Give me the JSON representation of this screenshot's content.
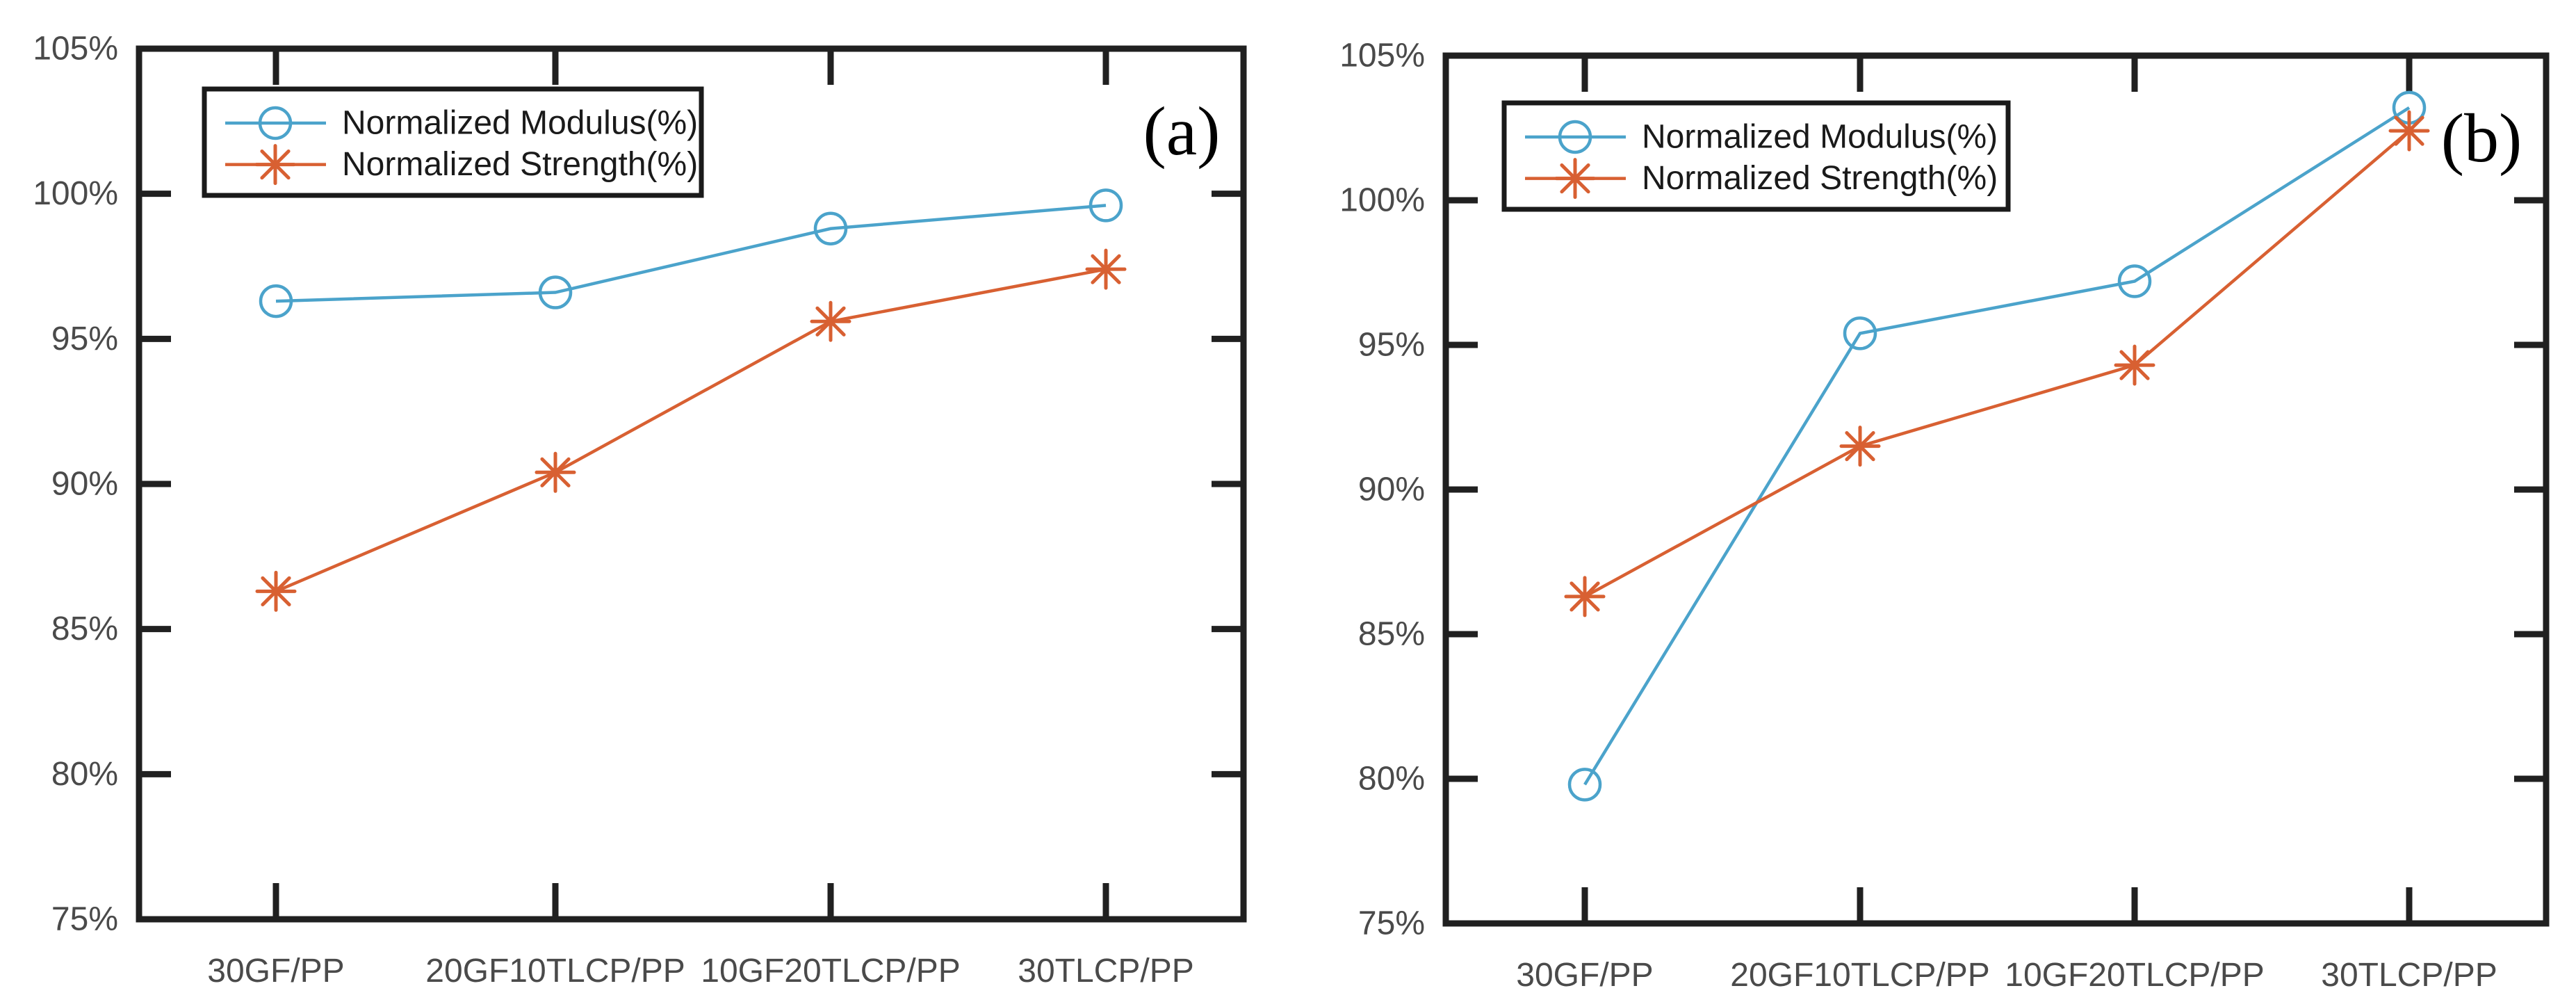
{
  "page": {
    "background_color": "#ffffff"
  },
  "colors": {
    "axis": "#202020",
    "tick_label": "#4a4a4a",
    "panel_label": "#000000",
    "legend_border": "#1a1a1a",
    "legend_background": "#ffffff"
  },
  "chart_data": [
    {
      "type": "line",
      "panel_label": "(a)",
      "title": "",
      "xlabel": "",
      "ylabel": "",
      "categories": [
        "30GF/PP",
        "20GF10TLCP/PP",
        "10GF20TLCP/PP",
        "30TLCP/PP"
      ],
      "series": [
        {
          "name": "Normalized Modulus(%)",
          "marker": "circle",
          "color": "#4BA3CB",
          "values": [
            96.3,
            96.6,
            98.8,
            99.6
          ]
        },
        {
          "name": "Normalized Strength(%)",
          "marker": "asterisk",
          "color": "#D86032",
          "values": [
            86.3,
            90.4,
            95.6,
            97.4
          ]
        }
      ],
      "ylim": [
        75,
        105
      ],
      "ytick_step": 5,
      "ytick_labels": [
        "75%",
        "80%",
        "85%",
        "90%",
        "95%",
        "100%",
        "105%"
      ],
      "legend_position": "top-left",
      "grid": false
    },
    {
      "type": "line",
      "panel_label": "(b)",
      "title": "",
      "xlabel": "",
      "ylabel": "",
      "categories": [
        "30GF/PP",
        "20GF10TLCP/PP",
        "10GF20TLCP/PP",
        "30TLCP/PP"
      ],
      "series": [
        {
          "name": "Normalized Modulus(%)",
          "marker": "circle",
          "color": "#4BA3CB",
          "values": [
            79.8,
            95.4,
            97.2,
            103.2
          ]
        },
        {
          "name": "Normalized Strength(%)",
          "marker": "asterisk",
          "color": "#D86032",
          "values": [
            86.3,
            91.5,
            94.3,
            102.4
          ]
        }
      ],
      "ylim": [
        75,
        105
      ],
      "ytick_step": 5,
      "ytick_labels": [
        "75%",
        "80%",
        "85%",
        "90%",
        "95%",
        "100%",
        "105%"
      ],
      "legend_position": "top-left",
      "grid": false
    }
  ]
}
